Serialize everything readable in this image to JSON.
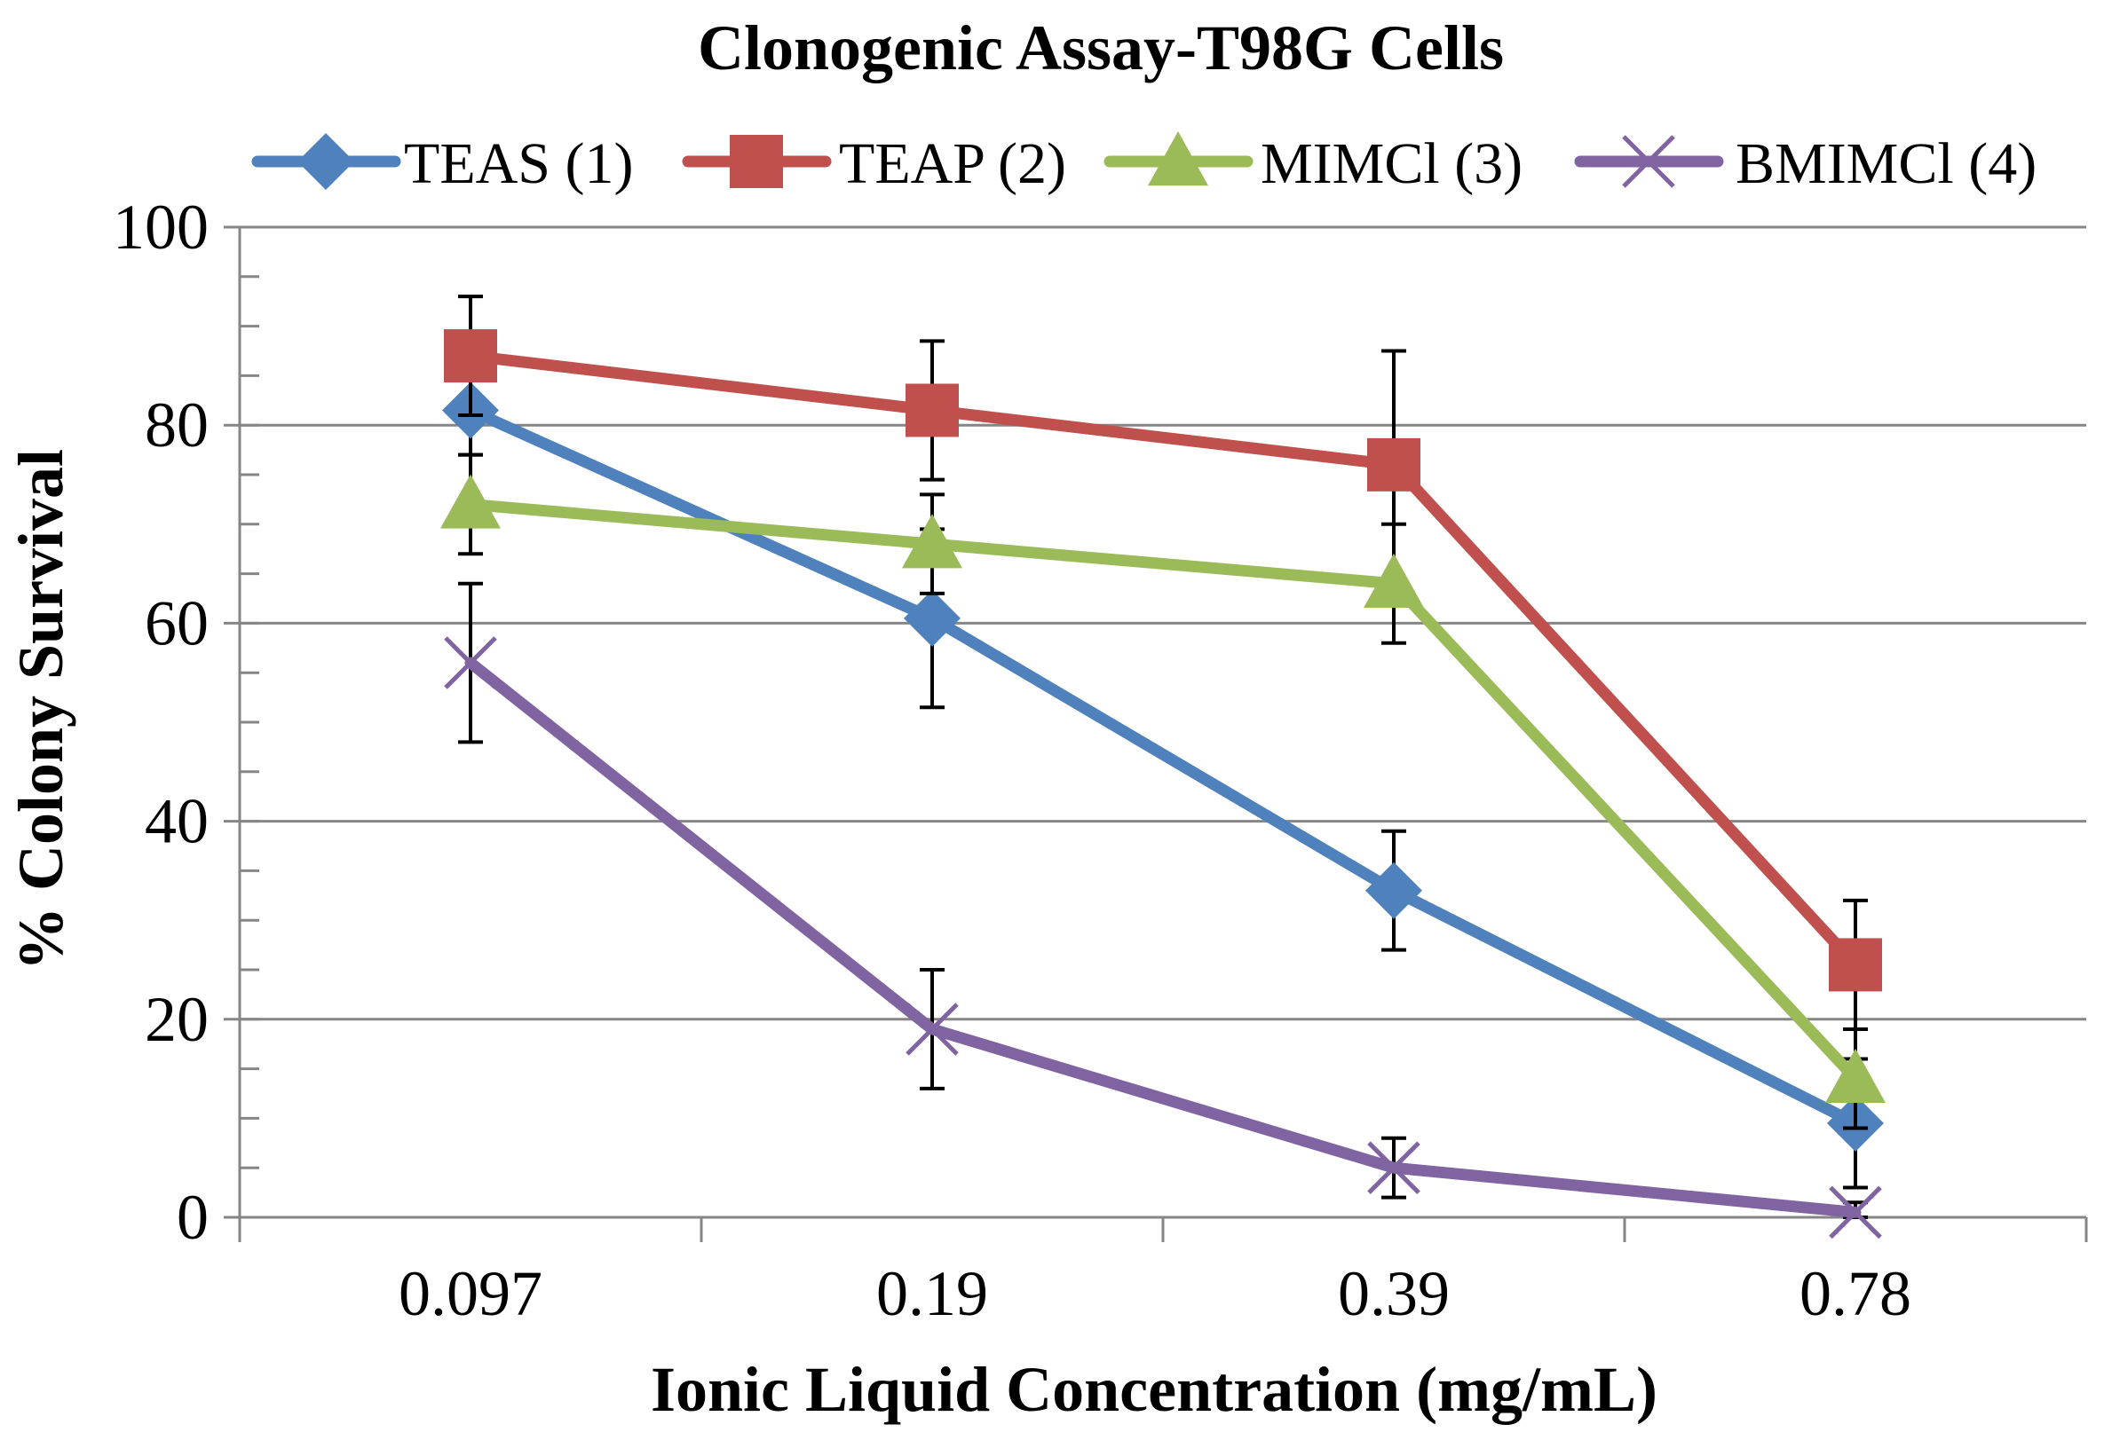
{
  "chart_data": {
    "type": "line",
    "title": "Clonogenic  Assay-T98G Cells",
    "xlabel": "Ionic Liquid Concentration (mg/mL)",
    "ylabel": "% Colony Survival",
    "categories": [
      "0.097",
      "0.19",
      "0.39",
      "0.78"
    ],
    "ylim": [
      0,
      100
    ],
    "yticks": [
      "0",
      "20",
      "40",
      "60",
      "80",
      "100"
    ],
    "grid": "horizontal",
    "legend_position": "top",
    "series": [
      {
        "name": "TEAS (1)",
        "color": "#4F81BD",
        "marker": "diamond",
        "values": [
          81.5,
          60.5,
          33,
          9.5
        ],
        "errors": [
          4.5,
          9,
          6,
          6.5
        ]
      },
      {
        "name": "TEAP (2)",
        "color": "#C0504D",
        "marker": "square",
        "values": [
          87,
          81.5,
          76,
          25.5
        ],
        "errors": [
          6,
          7,
          11.5,
          6.5
        ]
      },
      {
        "name": "MIMCl (3)",
        "color": "#9BBB59",
        "marker": "triangle",
        "values": [
          72,
          68,
          64,
          14
        ],
        "errors": [
          5,
          5,
          6,
          5
        ]
      },
      {
        "name": "BMIMCl (4)",
        "color": "#8064A2",
        "marker": "x",
        "values": [
          56,
          19,
          5,
          0.5
        ],
        "errors": [
          8,
          6,
          3,
          1
        ]
      }
    ]
  }
}
